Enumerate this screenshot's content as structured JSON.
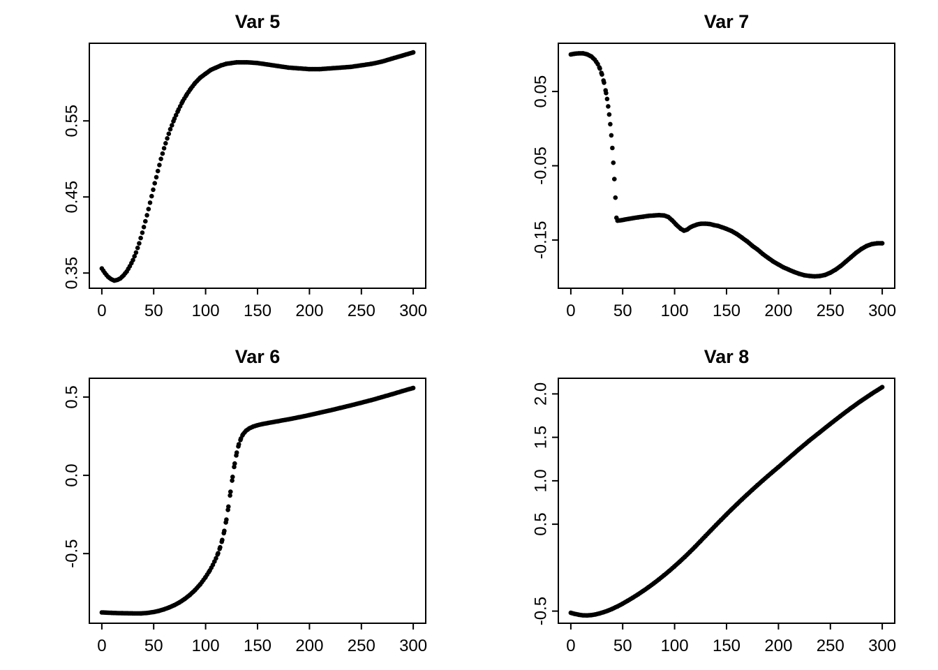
{
  "page": {
    "background": "#ffffff",
    "text_color": "#000000"
  },
  "chart_data": [
    {
      "id": "var5",
      "type": "scatter",
      "title": "Var 5",
      "point_color": "#000000",
      "xlabel": "",
      "ylabel": "",
      "xlim": [
        -12,
        312
      ],
      "ylim": [
        0.33,
        0.652
      ],
      "x_ticks": [
        0,
        50,
        100,
        150,
        200,
        250,
        300
      ],
      "x_tick_labels": [
        "0",
        "50",
        "100",
        "150",
        "200",
        "250",
        "300"
      ],
      "y_ticks": [
        0.35,
        0.45,
        0.55
      ],
      "y_tick_labels": [
        "0.35",
        "0.45",
        "0.55"
      ],
      "points": [
        [
          0,
          0.356
        ],
        [
          3,
          0.35
        ],
        [
          6,
          0.345
        ],
        [
          9,
          0.342
        ],
        [
          12,
          0.34
        ],
        [
          15,
          0.341
        ],
        [
          18,
          0.343
        ],
        [
          21,
          0.347
        ],
        [
          24,
          0.352
        ],
        [
          27,
          0.359
        ],
        [
          30,
          0.367
        ],
        [
          33,
          0.377
        ],
        [
          36,
          0.389
        ],
        [
          39,
          0.403
        ],
        [
          42,
          0.418
        ],
        [
          45,
          0.434
        ],
        [
          48,
          0.451
        ],
        [
          51,
          0.468
        ],
        [
          54,
          0.484
        ],
        [
          57,
          0.5
        ],
        [
          60,
          0.514
        ],
        [
          63,
          0.527
        ],
        [
          66,
          0.539
        ],
        [
          70,
          0.553
        ],
        [
          74,
          0.565
        ],
        [
          78,
          0.576
        ],
        [
          82,
          0.585
        ],
        [
          86,
          0.593
        ],
        [
          90,
          0.6
        ],
        [
          95,
          0.607
        ],
        [
          100,
          0.612
        ],
        [
          105,
          0.617
        ],
        [
          110,
          0.62
        ],
        [
          115,
          0.623
        ],
        [
          120,
          0.625
        ],
        [
          125,
          0.626
        ],
        [
          130,
          0.627
        ],
        [
          140,
          0.627
        ],
        [
          150,
          0.626
        ],
        [
          160,
          0.624
        ],
        [
          170,
          0.622
        ],
        [
          180,
          0.62
        ],
        [
          190,
          0.619
        ],
        [
          200,
          0.618
        ],
        [
          210,
          0.618
        ],
        [
          220,
          0.619
        ],
        [
          230,
          0.62
        ],
        [
          240,
          0.621
        ],
        [
          250,
          0.623
        ],
        [
          260,
          0.625
        ],
        [
          270,
          0.628
        ],
        [
          280,
          0.632
        ],
        [
          290,
          0.636
        ],
        [
          300,
          0.64
        ]
      ]
    },
    {
      "id": "var7",
      "type": "scatter",
      "title": "Var 7",
      "point_color": "#000000",
      "xlabel": "",
      "ylabel": "",
      "xlim": [
        -12,
        312
      ],
      "ylim": [
        -0.215,
        0.115
      ],
      "x_ticks": [
        0,
        50,
        100,
        150,
        200,
        250,
        300
      ],
      "x_tick_labels": [
        "0",
        "50",
        "100",
        "150",
        "200",
        "250",
        "300"
      ],
      "y_ticks": [
        0.05,
        -0.05,
        -0.15
      ],
      "y_tick_labels": [
        "0.05",
        "-0.05",
        "-0.15"
      ],
      "points": [
        [
          0,
          0.1
        ],
        [
          4,
          0.101
        ],
        [
          8,
          0.1015
        ],
        [
          12,
          0.1015
        ],
        [
          16,
          0.1
        ],
        [
          20,
          0.097
        ],
        [
          23,
          0.093
        ],
        [
          26,
          0.087
        ],
        [
          28,
          0.081
        ],
        [
          30,
          0.073
        ],
        [
          32,
          0.062
        ],
        [
          34,
          0.048
        ],
        [
          35,
          0.04
        ],
        [
          36,
          0.03
        ],
        [
          37,
          0.019
        ],
        [
          38,
          0.006
        ],
        [
          39,
          -0.009
        ],
        [
          40,
          -0.026
        ],
        [
          41,
          -0.046
        ],
        [
          42,
          -0.068
        ],
        [
          43,
          -0.093
        ],
        [
          44,
          -0.12
        ],
        [
          45,
          -0.124
        ],
        [
          48,
          -0.1235
        ],
        [
          52,
          -0.1225
        ],
        [
          56,
          -0.1215
        ],
        [
          60,
          -0.1205
        ],
        [
          65,
          -0.1195
        ],
        [
          70,
          -0.1185
        ],
        [
          75,
          -0.1175
        ],
        [
          80,
          -0.117
        ],
        [
          85,
          -0.1165
        ],
        [
          90,
          -0.117
        ],
        [
          94,
          -0.119
        ],
        [
          98,
          -0.124
        ],
        [
          102,
          -0.13
        ],
        [
          106,
          -0.135
        ],
        [
          109,
          -0.1375
        ],
        [
          112,
          -0.136
        ],
        [
          115,
          -0.133
        ],
        [
          118,
          -0.131
        ],
        [
          122,
          -0.129
        ],
        [
          126,
          -0.128
        ],
        [
          130,
          -0.128
        ],
        [
          134,
          -0.1285
        ],
        [
          138,
          -0.13
        ],
        [
          142,
          -0.131
        ],
        [
          146,
          -0.133
        ],
        [
          150,
          -0.135
        ],
        [
          155,
          -0.138
        ],
        [
          160,
          -0.142
        ],
        [
          165,
          -0.147
        ],
        [
          170,
          -0.152
        ],
        [
          175,
          -0.158
        ],
        [
          180,
          -0.163
        ],
        [
          185,
          -0.169
        ],
        [
          190,
          -0.174
        ],
        [
          195,
          -0.179
        ],
        [
          200,
          -0.183
        ],
        [
          205,
          -0.187
        ],
        [
          210,
          -0.19
        ],
        [
          215,
          -0.193
        ],
        [
          220,
          -0.1955
        ],
        [
          225,
          -0.1975
        ],
        [
          230,
          -0.1985
        ],
        [
          235,
          -0.199
        ],
        [
          240,
          -0.1985
        ],
        [
          245,
          -0.197
        ],
        [
          250,
          -0.194
        ],
        [
          255,
          -0.19
        ],
        [
          260,
          -0.185
        ],
        [
          265,
          -0.179
        ],
        [
          270,
          -0.173
        ],
        [
          275,
          -0.167
        ],
        [
          280,
          -0.162
        ],
        [
          285,
          -0.158
        ],
        [
          290,
          -0.1555
        ],
        [
          295,
          -0.1545
        ],
        [
          300,
          -0.1545
        ]
      ]
    },
    {
      "id": "var6",
      "type": "scatter",
      "title": "Var 6",
      "point_color": "#000000",
      "xlabel": "",
      "ylabel": "",
      "xlim": [
        -12,
        312
      ],
      "ylim": [
        -0.945,
        0.62
      ],
      "x_ticks": [
        0,
        50,
        100,
        150,
        200,
        250,
        300
      ],
      "x_tick_labels": [
        "0",
        "50",
        "100",
        "150",
        "200",
        "250",
        "300"
      ],
      "y_ticks": [
        0.5,
        0.0,
        -0.5
      ],
      "y_tick_labels": [
        "0.5",
        "0.0",
        "-0.5"
      ],
      "points": [
        [
          0,
          -0.876
        ],
        [
          10,
          -0.879
        ],
        [
          20,
          -0.881
        ],
        [
          30,
          -0.882
        ],
        [
          38,
          -0.882
        ],
        [
          44,
          -0.879
        ],
        [
          50,
          -0.873
        ],
        [
          55,
          -0.866
        ],
        [
          60,
          -0.856
        ],
        [
          65,
          -0.844
        ],
        [
          70,
          -0.829
        ],
        [
          75,
          -0.811
        ],
        [
          80,
          -0.789
        ],
        [
          85,
          -0.763
        ],
        [
          90,
          -0.732
        ],
        [
          95,
          -0.695
        ],
        [
          100,
          -0.65
        ],
        [
          104,
          -0.608
        ],
        [
          107,
          -0.572
        ],
        [
          110,
          -0.53
        ],
        [
          112,
          -0.498
        ],
        [
          114,
          -0.46
        ],
        [
          116,
          -0.413
        ],
        [
          118,
          -0.355
        ],
        [
          120,
          -0.283
        ],
        [
          122,
          -0.2
        ],
        [
          124,
          -0.105
        ],
        [
          126,
          -0.01
        ],
        [
          128,
          0.075
        ],
        [
          130,
          0.145
        ],
        [
          132,
          0.198
        ],
        [
          134,
          0.235
        ],
        [
          136,
          0.262
        ],
        [
          139,
          0.285
        ],
        [
          142,
          0.3
        ],
        [
          146,
          0.312
        ],
        [
          150,
          0.32
        ],
        [
          155,
          0.328
        ],
        [
          160,
          0.334
        ],
        [
          170,
          0.346
        ],
        [
          180,
          0.358
        ],
        [
          190,
          0.371
        ],
        [
          200,
          0.385
        ],
        [
          210,
          0.4
        ],
        [
          220,
          0.415
        ],
        [
          230,
          0.431
        ],
        [
          240,
          0.447
        ],
        [
          250,
          0.464
        ],
        [
          260,
          0.481
        ],
        [
          270,
          0.5
        ],
        [
          280,
          0.519
        ],
        [
          290,
          0.539
        ],
        [
          300,
          0.558
        ]
      ]
    },
    {
      "id": "var8",
      "type": "scatter",
      "title": "Var 8",
      "point_color": "#000000",
      "xlabel": "",
      "ylabel": "",
      "xlim": [
        -12,
        312
      ],
      "ylim": [
        -0.64,
        2.18
      ],
      "x_ticks": [
        0,
        50,
        100,
        150,
        200,
        250,
        300
      ],
      "x_tick_labels": [
        "0",
        "50",
        "100",
        "150",
        "200",
        "250",
        "300"
      ],
      "y_ticks": [
        2.0,
        1.5,
        1.0,
        0.5,
        -0.5
      ],
      "y_tick_labels": [
        "2.0",
        "1.5",
        "1.0",
        "0.5",
        "-0.5"
      ],
      "points": [
        [
          0,
          -0.52
        ],
        [
          4,
          -0.533
        ],
        [
          8,
          -0.543
        ],
        [
          12,
          -0.549
        ],
        [
          16,
          -0.55
        ],
        [
          20,
          -0.546
        ],
        [
          24,
          -0.538
        ],
        [
          28,
          -0.526
        ],
        [
          32,
          -0.511
        ],
        [
          36,
          -0.494
        ],
        [
          40,
          -0.474
        ],
        [
          45,
          -0.446
        ],
        [
          50,
          -0.414
        ],
        [
          55,
          -0.38
        ],
        [
          60,
          -0.344
        ],
        [
          65,
          -0.306
        ],
        [
          70,
          -0.266
        ],
        [
          75,
          -0.224
        ],
        [
          80,
          -0.18
        ],
        [
          85,
          -0.134
        ],
        [
          90,
          -0.086
        ],
        [
          95,
          -0.036
        ],
        [
          100,
          0.016
        ],
        [
          105,
          0.07
        ],
        [
          110,
          0.126
        ],
        [
          115,
          0.184
        ],
        [
          120,
          0.244
        ],
        [
          125,
          0.306
        ],
        [
          130,
          0.368
        ],
        [
          135,
          0.43
        ],
        [
          140,
          0.492
        ],
        [
          145,
          0.553
        ],
        [
          150,
          0.613
        ],
        [
          155,
          0.672
        ],
        [
          160,
          0.73
        ],
        [
          165,
          0.787
        ],
        [
          170,
          0.843
        ],
        [
          175,
          0.898
        ],
        [
          180,
          0.952
        ],
        [
          185,
          1.005
        ],
        [
          190,
          1.057
        ],
        [
          195,
          1.108
        ],
        [
          200,
          1.158
        ],
        [
          210,
          1.262
        ],
        [
          220,
          1.365
        ],
        [
          230,
          1.465
        ],
        [
          240,
          1.56
        ],
        [
          250,
          1.655
        ],
        [
          260,
          1.748
        ],
        [
          270,
          1.838
        ],
        [
          280,
          1.923
        ],
        [
          290,
          2.003
        ],
        [
          300,
          2.078
        ]
      ]
    }
  ]
}
